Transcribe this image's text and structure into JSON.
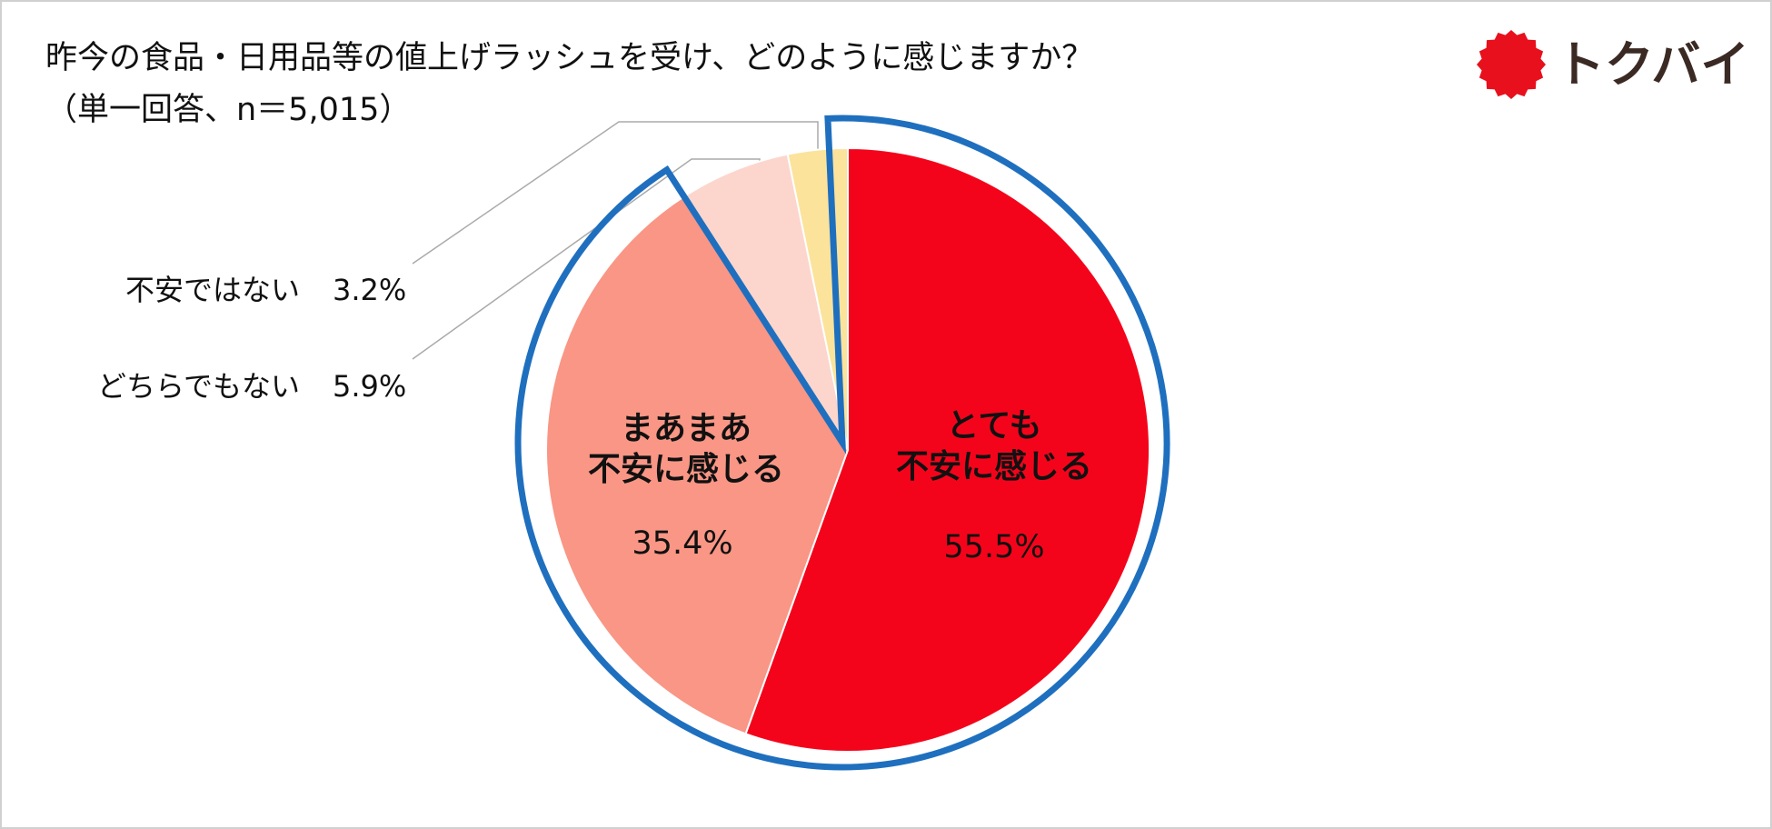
{
  "chart_data": {
    "type": "pie",
    "title": "昨今の食品・日用品等の値上げラッシュを受け、どのように感じますか？",
    "subtitle": "（単一回答、n＝5,015）",
    "categories": [
      "とても\n不安に感じる",
      "まあまあ\n不安に感じる",
      "どちらでもない",
      "不安ではない"
    ],
    "values": [
      55.5,
      35.4,
      5.9,
      3.2
    ],
    "value_labels": [
      "55.5%",
      "35.4%",
      "5.9%",
      "3.2%"
    ],
    "colors": [
      "#f4041b",
      "#f99685",
      "#fcd6cc",
      "#fbe39b"
    ],
    "highlight_color": "#1f6fbf"
  },
  "logo": "トクバイ"
}
